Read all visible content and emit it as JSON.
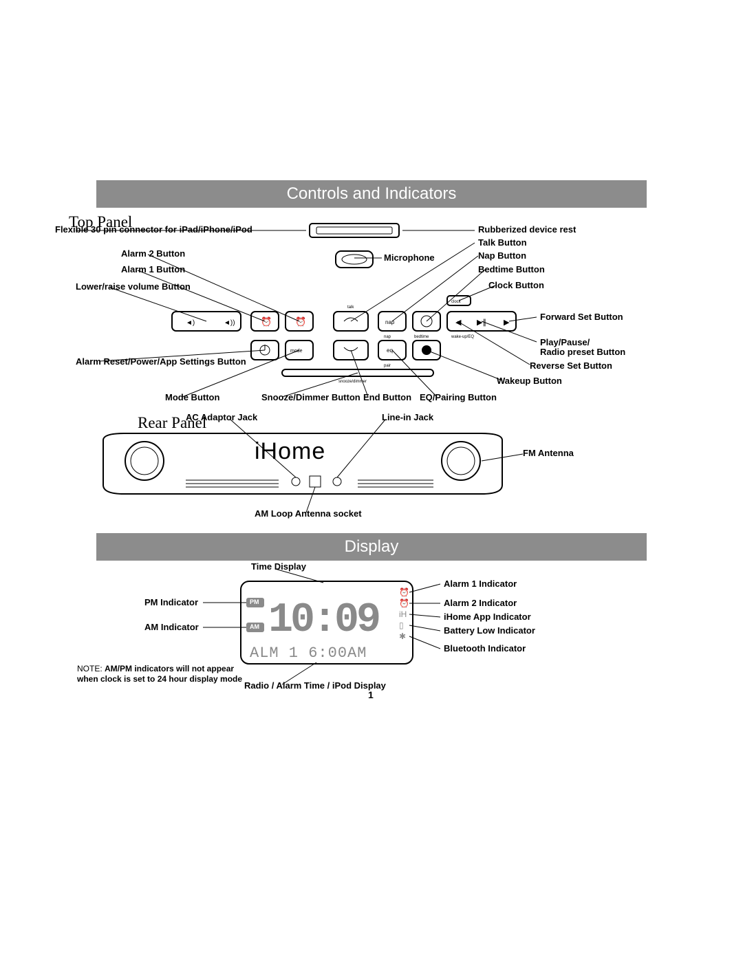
{
  "bars": {
    "controls": "Controls and Indicators",
    "display": "Display"
  },
  "subheads": {
    "top": "Top Panel",
    "rear": "Rear Panel"
  },
  "top_labels": {
    "flex": "Flexible 30 pin connector for iPad/iPhone/iPod",
    "alarm2": "Alarm 2 Button",
    "alarm1": "Alarm 1 Button",
    "vol": "Lower/raise volume Button",
    "reset": "Alarm Reset/Power/App Settings Button",
    "mode": "Mode Button",
    "snooze": "Snooze/Dimmer Button",
    "end": "End Button",
    "eq": "EQ/Pairing Button",
    "mic": "Microphone",
    "rub": "Rubberized device rest",
    "talk": "Talk Button",
    "nap": "Nap Button",
    "bed": "Bedtime Button",
    "clock": "Clock Button",
    "fwd": "Forward Set Button",
    "play": "Play/Pause/",
    "play2": "Radio preset Button",
    "rev": "Reverse Set Button",
    "wake": "Wakeup Button"
  },
  "rear_labels": {
    "ac": "AC Adaptor Jack",
    "line": "Line-in Jack",
    "fm": "FM Antenna",
    "am": "AM Loop Antenna socket"
  },
  "display_labels": {
    "time": "Time Display",
    "pm": "PM Indicator",
    "am": "AM Indicator",
    "a1": "Alarm 1 Indicator",
    "a2": "Alarm 2 Indicator",
    "app": "iHome App Indicator",
    "batt": "Battery Low Indicator",
    "bt": "Bluetooth Indicator",
    "radio": "Radio / Alarm Time / iPod Display"
  },
  "lcd": {
    "pm": "PM",
    "am": "AM",
    "main": "10:09",
    "sub": "ALM  1  6:00AM"
  },
  "note": {
    "l1": "NOTE: AM/PM indicators will not appear",
    "l2": "when clock is set to 24 hour display mode"
  },
  "pagenum": "1",
  "tiny": {
    "talk": "talk",
    "clock": "clock",
    "nap": "nap",
    "bedtime": "bedtime",
    "wake": "wake-up/EQ",
    "mode": "mode",
    "eq": "eq",
    "pair": "pair",
    "snooze": "snooze/dimmer"
  },
  "colors": {
    "bar": "#8c8c8c",
    "lcd_fill": "#8a8a8a"
  }
}
